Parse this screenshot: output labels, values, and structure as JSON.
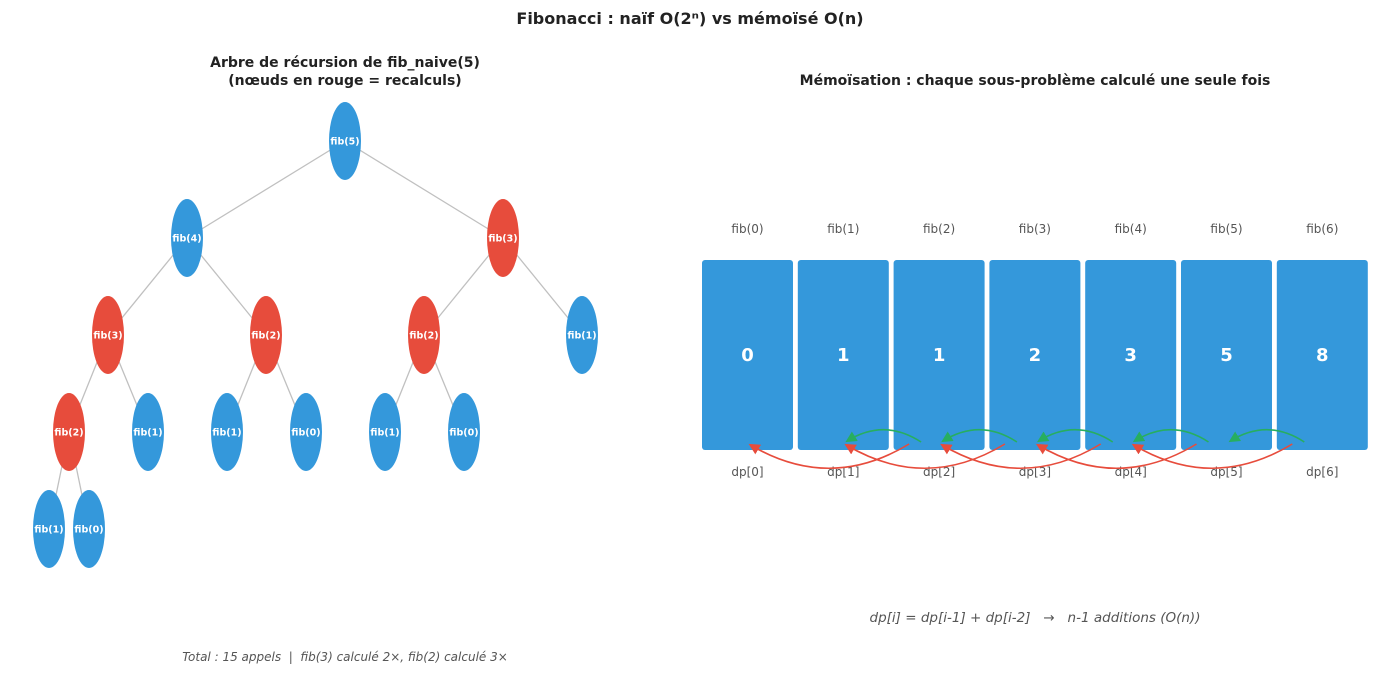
{
  "title": "Fibonacci : naïf O(2ⁿ) vs mémoïsé O(n)",
  "colors": {
    "normal": "#3498db",
    "recalc": "#e74c3c",
    "edge": "#c0c0c0",
    "arrow_green": "#27ae60",
    "arrow_red": "#e74c3c"
  },
  "tree": {
    "title_line1": "Arbre de récursion de fib_naive(5)",
    "title_line2": "(nœuds en rouge = recalculs)",
    "nodes": [
      {
        "id": "n5",
        "label": "fib(5)",
        "recalc": false,
        "parent": null
      },
      {
        "id": "n4",
        "label": "fib(4)",
        "recalc": false,
        "parent": "n5"
      },
      {
        "id": "n3a",
        "label": "fib(3)",
        "recalc": true,
        "parent": "n5"
      },
      {
        "id": "n3b",
        "label": "fib(3)",
        "recalc": true,
        "parent": "n4"
      },
      {
        "id": "n2a",
        "label": "fib(2)",
        "recalc": true,
        "parent": "n4"
      },
      {
        "id": "n2b",
        "label": "fib(2)",
        "recalc": true,
        "parent": "n3a"
      },
      {
        "id": "n1a",
        "label": "fib(1)",
        "recalc": false,
        "parent": "n3a"
      },
      {
        "id": "n2c",
        "label": "fib(2)",
        "recalc": true,
        "parent": "n3b"
      },
      {
        "id": "n1b",
        "label": "fib(1)",
        "recalc": false,
        "parent": "n3b"
      },
      {
        "id": "n1c",
        "label": "fib(1)",
        "recalc": false,
        "parent": "n2a"
      },
      {
        "id": "n0a",
        "label": "fib(0)",
        "recalc": false,
        "parent": "n2a"
      },
      {
        "id": "n1d",
        "label": "fib(1)",
        "recalc": false,
        "parent": "n2b"
      },
      {
        "id": "n0b",
        "label": "fib(0)",
        "recalc": false,
        "parent": "n2b"
      },
      {
        "id": "n1e",
        "label": "fib(1)",
        "recalc": false,
        "parent": "n2c"
      },
      {
        "id": "n0c",
        "label": "fib(0)",
        "recalc": false,
        "parent": "n2c"
      }
    ],
    "footnote": "Total : 15 appels  |  fib(3) calculé 2×, fib(2) calculé 3×"
  },
  "memo": {
    "title": "Mémoïsation : chaque sous-problème calculé une seule fois",
    "cells": [
      {
        "top": "fib(0)",
        "value": "0",
        "bottom": "dp[0]"
      },
      {
        "top": "fib(1)",
        "value": "1",
        "bottom": "dp[1]"
      },
      {
        "top": "fib(2)",
        "value": "1",
        "bottom": "dp[2]"
      },
      {
        "top": "fib(3)",
        "value": "2",
        "bottom": "dp[3]"
      },
      {
        "top": "fib(4)",
        "value": "3",
        "bottom": "dp[4]"
      },
      {
        "top": "fib(5)",
        "value": "5",
        "bottom": "dp[5]"
      },
      {
        "top": "fib(6)",
        "value": "8",
        "bottom": "dp[6]"
      }
    ],
    "formula": "dp[i] = dp[i-1] + dp[i-2]   →   n-1 additions (O(n))"
  }
}
